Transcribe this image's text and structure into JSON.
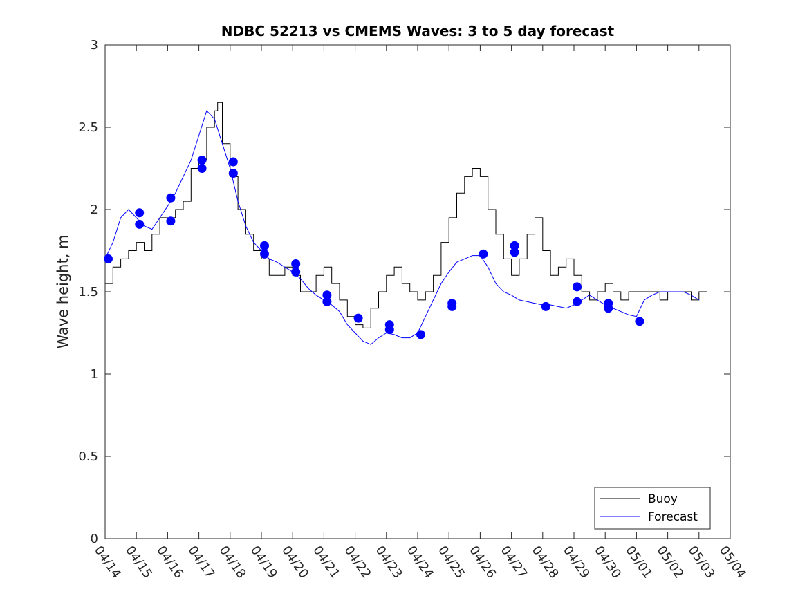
{
  "chart_data": {
    "type": "line",
    "title": "NDBC 52213 vs CMEMS Waves: 3 to 5 day forecast",
    "xlabel": "",
    "ylabel": "Wave height, m",
    "x_ticks": [
      "04/14",
      "04/15",
      "04/16",
      "04/17",
      "04/18",
      "04/19",
      "04/20",
      "04/21",
      "04/22",
      "04/23",
      "04/24",
      "04/25",
      "04/26",
      "04/27",
      "04/28",
      "04/29",
      "04/30",
      "05/01",
      "05/02",
      "05/03",
      "05/04"
    ],
    "y_ticks": [
      "0",
      "0.5",
      "1",
      "1.5",
      "2",
      "2.5",
      "3"
    ],
    "xlim_days": [
      0,
      20
    ],
    "ylim": [
      0,
      3
    ],
    "grid": false,
    "legend": {
      "position": "bottom-right",
      "entries": [
        "Buoy",
        "Forecast"
      ]
    },
    "colors": {
      "buoy": "#000000",
      "forecast": "#0000ff"
    },
    "series": [
      {
        "name": "Buoy",
        "style": "stepped-line",
        "x": [
          0.0,
          0.25,
          0.5,
          0.75,
          1.0,
          1.25,
          1.5,
          1.75,
          2.0,
          2.25,
          2.5,
          2.75,
          3.0,
          3.25,
          3.5,
          3.6,
          3.75,
          4.0,
          4.25,
          4.5,
          4.75,
          5.0,
          5.25,
          5.5,
          5.75,
          6.0,
          6.25,
          6.5,
          6.75,
          7.0,
          7.25,
          7.5,
          7.75,
          8.0,
          8.25,
          8.5,
          8.75,
          9.0,
          9.25,
          9.5,
          9.75,
          10.0,
          10.25,
          10.5,
          10.75,
          11.0,
          11.25,
          11.5,
          11.75,
          12.0,
          12.25,
          12.5,
          12.75,
          13.0,
          13.25,
          13.5,
          13.75,
          14.0,
          14.25,
          14.5,
          14.75,
          15.0,
          15.25,
          15.5,
          15.75,
          16.0,
          16.25,
          16.5,
          16.75,
          17.0,
          17.25,
          17.5,
          17.75,
          18.0,
          18.25,
          18.5,
          18.75,
          19.0,
          19.25
        ],
        "y": [
          1.55,
          1.65,
          1.7,
          1.75,
          1.8,
          1.75,
          1.85,
          1.95,
          1.95,
          2.0,
          2.05,
          2.25,
          2.3,
          2.5,
          2.6,
          2.65,
          2.4,
          2.2,
          2.0,
          1.85,
          1.75,
          1.7,
          1.6,
          1.6,
          1.65,
          1.6,
          1.5,
          1.5,
          1.6,
          1.65,
          1.55,
          1.45,
          1.35,
          1.3,
          1.28,
          1.4,
          1.5,
          1.6,
          1.65,
          1.55,
          1.5,
          1.45,
          1.5,
          1.6,
          1.8,
          1.95,
          2.1,
          2.2,
          2.25,
          2.2,
          2.0,
          1.85,
          1.7,
          1.6,
          1.7,
          1.85,
          1.95,
          1.75,
          1.6,
          1.65,
          1.7,
          1.6,
          1.5,
          1.45,
          1.5,
          1.55,
          1.5,
          1.45,
          1.5,
          1.5,
          1.5,
          1.5,
          1.45,
          1.5,
          1.5,
          1.5,
          1.45,
          1.5,
          1.5
        ]
      },
      {
        "name": "Forecast",
        "style": "line",
        "x": [
          0.0,
          0.25,
          0.5,
          0.75,
          1.0,
          1.25,
          1.5,
          1.75,
          2.0,
          2.25,
          2.5,
          2.75,
          3.0,
          3.25,
          3.5,
          3.75,
          4.0,
          4.25,
          4.5,
          4.75,
          5.0,
          5.25,
          5.5,
          5.75,
          6.0,
          6.25,
          6.5,
          6.75,
          7.0,
          7.25,
          7.5,
          7.75,
          8.0,
          8.25,
          8.5,
          8.75,
          9.0,
          9.25,
          9.5,
          9.75,
          10.0,
          10.25,
          10.5,
          10.75,
          11.0,
          11.25,
          11.5,
          11.75,
          12.0,
          12.25,
          12.5,
          12.75,
          13.0,
          13.25,
          13.5,
          13.75,
          14.0,
          14.25,
          14.5,
          14.75,
          15.0,
          15.25,
          15.5,
          15.75,
          16.0,
          16.25,
          16.5,
          16.75,
          17.0,
          17.25,
          17.5,
          17.75,
          18.0,
          18.25,
          18.5,
          18.75,
          19.0
        ],
        "y": [
          1.7,
          1.8,
          1.95,
          2.0,
          1.95,
          1.9,
          1.88,
          1.95,
          2.02,
          2.1,
          2.2,
          2.3,
          2.45,
          2.6,
          2.55,
          2.4,
          2.25,
          2.05,
          1.9,
          1.8,
          1.75,
          1.7,
          1.68,
          1.65,
          1.62,
          1.58,
          1.52,
          1.48,
          1.45,
          1.42,
          1.38,
          1.3,
          1.25,
          1.2,
          1.18,
          1.22,
          1.25,
          1.24,
          1.22,
          1.22,
          1.25,
          1.35,
          1.45,
          1.55,
          1.62,
          1.68,
          1.7,
          1.72,
          1.72,
          1.65,
          1.55,
          1.5,
          1.48,
          1.45,
          1.44,
          1.43,
          1.42,
          1.42,
          1.41,
          1.4,
          1.42,
          1.45,
          1.48,
          1.45,
          1.42,
          1.4,
          1.38,
          1.36,
          1.35,
          1.45,
          1.48,
          1.5,
          1.5,
          1.5,
          1.5,
          1.48,
          1.45
        ]
      }
    ],
    "forecast_markers": [
      {
        "x": 0.1,
        "y": 1.7
      },
      {
        "x": 1.1,
        "y": 1.98
      },
      {
        "x": 1.1,
        "y": 1.91
      },
      {
        "x": 2.1,
        "y": 2.07
      },
      {
        "x": 2.1,
        "y": 1.93
      },
      {
        "x": 3.1,
        "y": 2.3
      },
      {
        "x": 3.1,
        "y": 2.25
      },
      {
        "x": 4.1,
        "y": 2.29
      },
      {
        "x": 4.1,
        "y": 2.22
      },
      {
        "x": 5.1,
        "y": 1.78
      },
      {
        "x": 5.1,
        "y": 1.73
      },
      {
        "x": 6.1,
        "y": 1.67
      },
      {
        "x": 6.1,
        "y": 1.62
      },
      {
        "x": 7.1,
        "y": 1.48
      },
      {
        "x": 7.1,
        "y": 1.44
      },
      {
        "x": 8.1,
        "y": 1.34
      },
      {
        "x": 9.1,
        "y": 1.3
      },
      {
        "x": 9.1,
        "y": 1.27
      },
      {
        "x": 10.1,
        "y": 1.24
      },
      {
        "x": 11.1,
        "y": 1.43
      },
      {
        "x": 11.1,
        "y": 1.41
      },
      {
        "x": 12.1,
        "y": 1.73
      },
      {
        "x": 13.1,
        "y": 1.78
      },
      {
        "x": 13.1,
        "y": 1.74
      },
      {
        "x": 14.1,
        "y": 1.41
      },
      {
        "x": 15.1,
        "y": 1.53
      },
      {
        "x": 15.1,
        "y": 1.44
      },
      {
        "x": 16.1,
        "y": 1.43
      },
      {
        "x": 16.1,
        "y": 1.4
      },
      {
        "x": 17.1,
        "y": 1.32
      }
    ]
  }
}
